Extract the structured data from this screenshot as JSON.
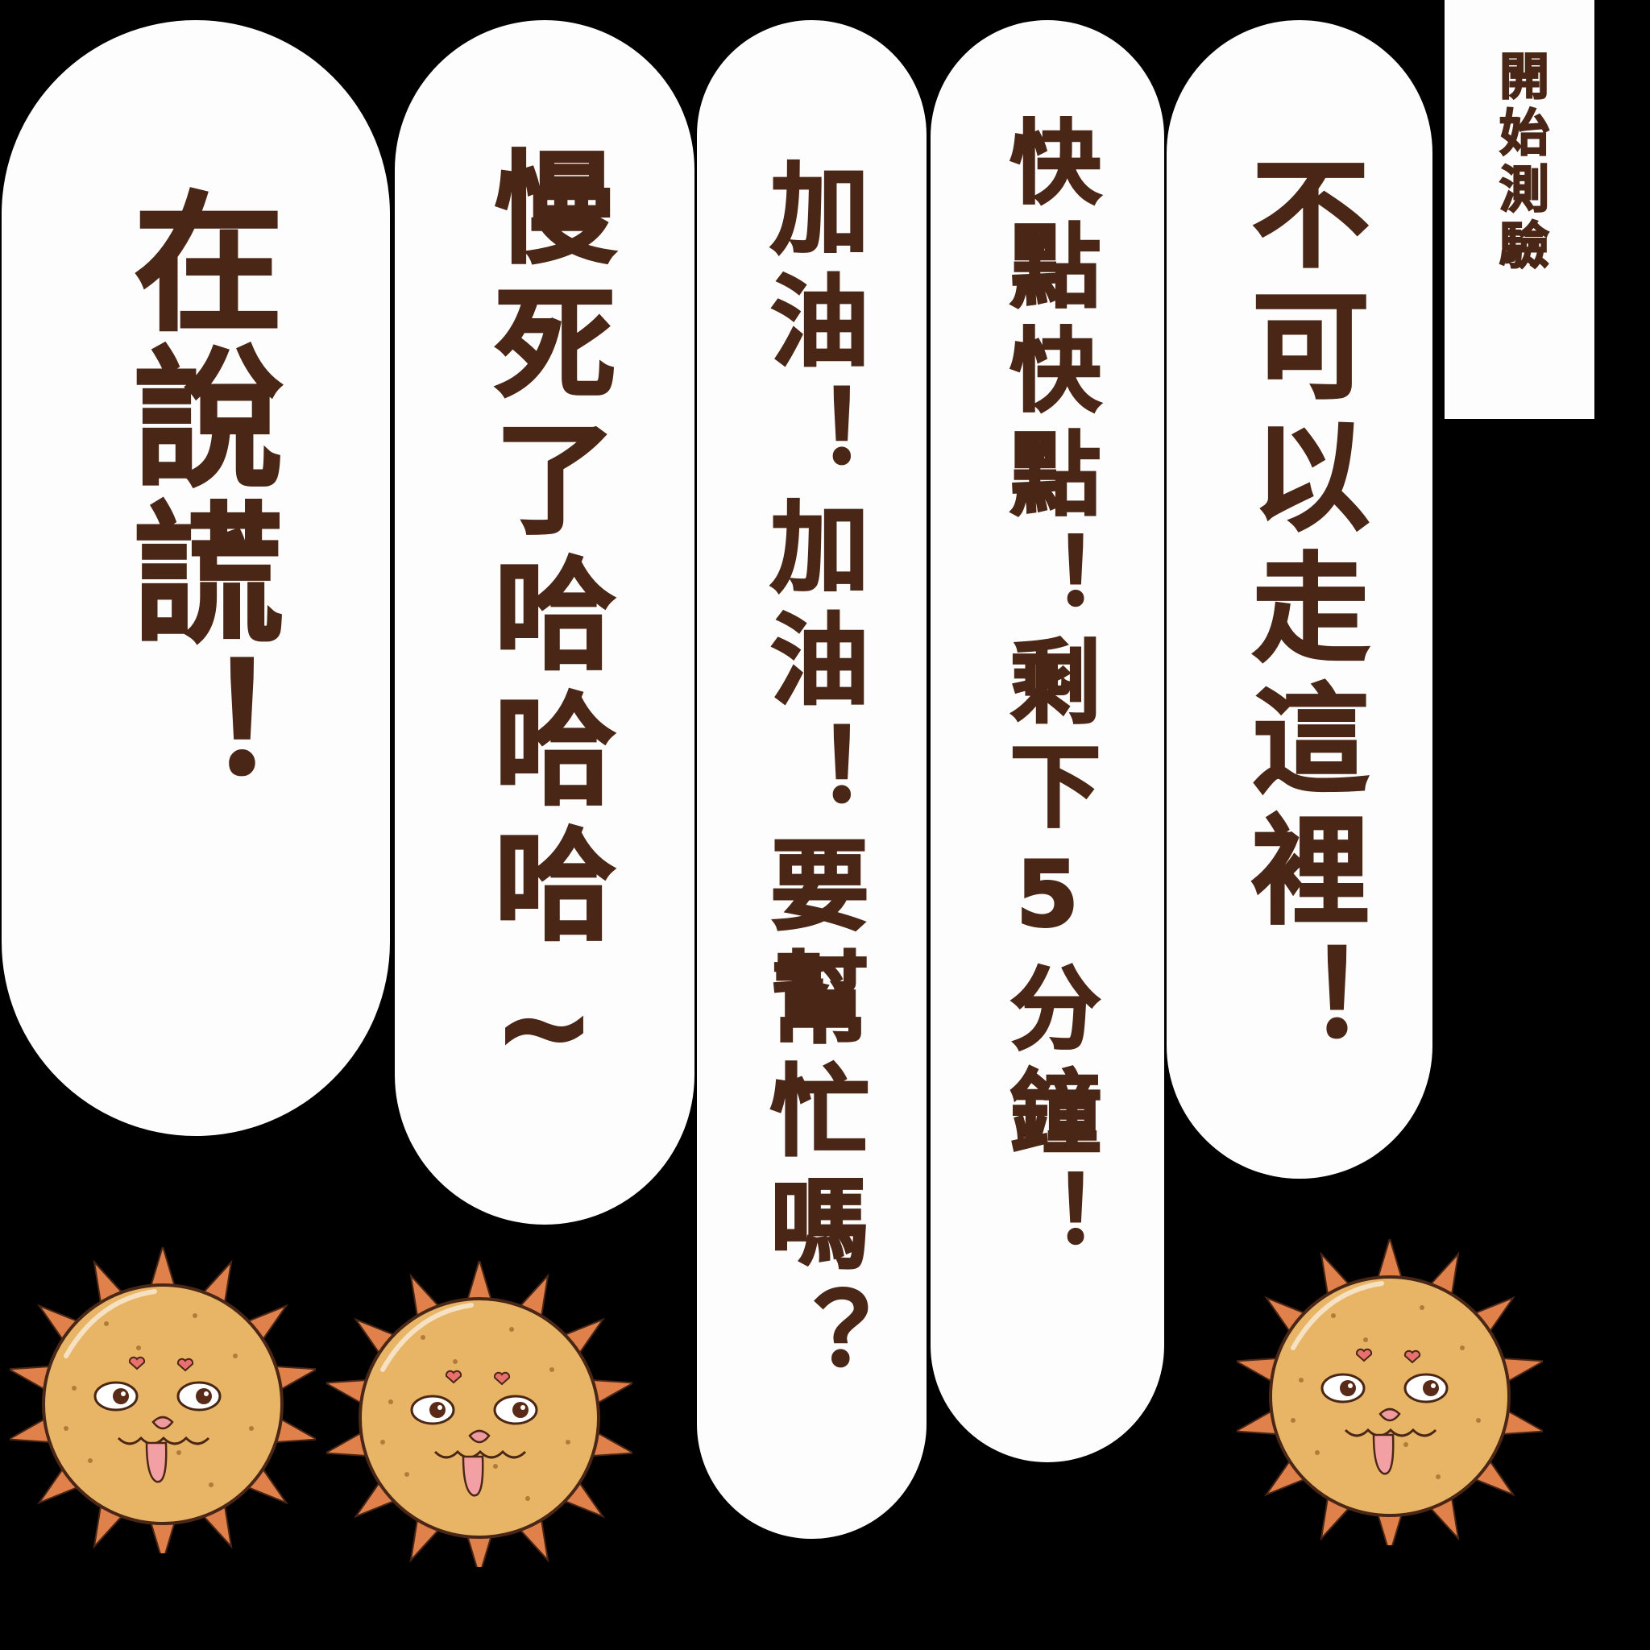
{
  "label": {
    "text": "開始測驗"
  },
  "bubbles": [
    {
      "text": "不可以走這裡！"
    },
    {
      "text": "快點快點！剩下5分鐘！"
    },
    {
      "text": "加油！加油！要幫忙嗎？"
    },
    {
      "text": "慢死了哈哈哈~"
    },
    {
      "text": "在說謊！"
    }
  ],
  "colors": {
    "background": "#000000",
    "bubble_fill": "#fdfdfd",
    "text": "#4a2616",
    "mascot_body": "#e8b566",
    "mascot_spikes": "#e0804a"
  },
  "mascots": [
    {
      "icon": "spiky-sun-mascot-icon"
    },
    {
      "icon": "spiky-sun-mascot-icon"
    },
    {
      "icon": "spiky-sun-mascot-icon"
    }
  ]
}
